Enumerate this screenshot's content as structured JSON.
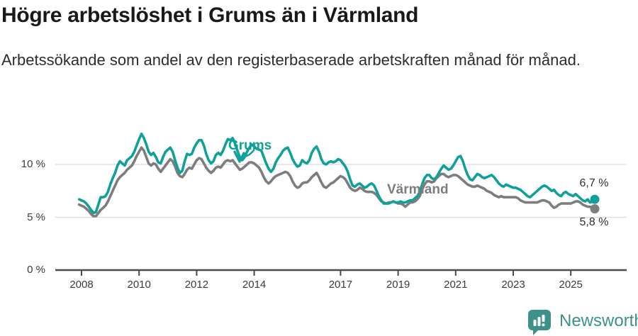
{
  "chart_data": {
    "type": "line",
    "title": "Högre arbetslöshet i Grums än i Värmland",
    "subtitle": "Arbetssökande som andel av den registerbaserade arbetskraften månad för månad.",
    "unit": "%",
    "grid": "horizontal-only",
    "legend": "inline-labels",
    "x_axis": {
      "ticks": [
        {
          "value": 2008,
          "label": "2008"
        },
        {
          "value": 2010,
          "label": "2010"
        },
        {
          "value": 2012,
          "label": "2012"
        },
        {
          "value": 2014,
          "label": "2014"
        },
        {
          "value": 2017,
          "label": "2017"
        },
        {
          "value": 2019,
          "label": "2019"
        },
        {
          "value": 2021,
          "label": "2021"
        },
        {
          "value": 2023,
          "label": "2023"
        },
        {
          "value": 2025,
          "label": "2025"
        }
      ]
    },
    "y_axis": {
      "min": 0,
      "max": 13.6,
      "ticks": [
        {
          "value": 0,
          "label": "0 %"
        },
        {
          "value": 5,
          "label": "5 %"
        },
        {
          "value": 10,
          "label": "10 %"
        }
      ]
    },
    "x_start_year": 2007.9167,
    "x_step_years": 0.0833333,
    "series": [
      {
        "name": "Grums",
        "color": "#10a09a",
        "end_value": 6.7,
        "end_label": "6,7 %",
        "values": [
          6.7,
          6.6,
          6.5,
          6.3,
          6.0,
          5.7,
          5.4,
          5.5,
          6.2,
          6.9,
          6.9,
          7.0,
          7.4,
          8.1,
          8.7,
          9.2,
          9.9,
          10.3,
          10.1,
          9.9,
          10.4,
          10.6,
          10.8,
          11.2,
          11.8,
          12.4,
          12.9,
          12.5,
          11.9,
          11.2,
          10.9,
          11.1,
          10.7,
          10.2,
          10.1,
          10.7,
          11.2,
          11.4,
          11.6,
          11.2,
          10.4,
          9.7,
          9.2,
          9.4,
          10.3,
          11.0,
          10.9,
          11.0,
          11.6,
          12.0,
          12.3,
          12.3,
          11.8,
          11.0,
          10.4,
          10.1,
          10.3,
          10.9,
          11.1,
          10.9,
          11.3,
          11.9,
          12.4,
          12.3,
          12.5,
          12.0,
          11.3,
          10.7,
          10.4,
          10.7,
          11.2,
          11.6,
          11.9,
          11.7,
          11.5,
          11.4,
          11.3,
          10.7,
          10.1,
          9.6,
          9.3,
          9.6,
          10.2,
          10.6,
          10.9,
          11.3,
          11.5,
          11.6,
          11.1,
          10.5,
          10.1,
          9.8,
          9.9,
          10.4,
          10.2,
          10.1,
          10.4,
          11.1,
          11.5,
          11.7,
          11.2,
          10.5,
          10.1,
          10.0,
          10.2,
          10.3,
          10.2,
          10.3,
          10.5,
          10.4,
          10.1,
          9.8,
          9.3,
          8.6,
          8.0,
          7.9,
          8.1,
          8.2,
          8.0,
          7.8,
          7.9,
          8.1,
          8.2,
          8.0,
          7.5,
          7.0,
          6.6,
          6.3,
          6.3,
          6.3,
          6.4,
          6.5,
          6.4,
          6.4,
          6.5,
          6.4,
          6.4,
          6.5,
          6.6,
          6.6,
          6.8,
          7.0,
          7.4,
          8.1,
          8.7,
          9.0,
          9.0,
          8.7,
          8.6,
          8.8,
          9.2,
          9.6,
          9.9,
          9.7,
          9.5,
          9.6,
          9.9,
          10.3,
          10.7,
          10.8,
          10.3,
          9.6,
          9.0,
          8.6,
          8.5,
          8.8,
          9.1,
          9.0,
          8.8,
          8.7,
          8.8,
          8.9,
          9.0,
          8.8,
          8.5,
          8.2,
          8.0,
          7.9,
          8.1,
          8.0,
          7.9,
          7.8,
          7.8,
          7.7,
          7.6,
          7.4,
          7.2,
          7.0,
          6.9,
          7.1,
          7.3,
          7.5,
          7.7,
          7.9,
          8.0,
          7.9,
          7.7,
          7.5,
          7.6,
          7.3,
          7.1,
          7.0,
          7.3,
          7.4,
          7.2,
          7.1,
          7.0,
          7.2,
          7.0,
          6.8,
          6.6,
          6.5,
          6.7,
          6.4,
          6.5,
          6.7
        ]
      },
      {
        "name": "Värmland",
        "color": "#7d7d7d",
        "end_value": 5.8,
        "end_label": "5,8 %",
        "values": [
          6.2,
          6.1,
          6.0,
          5.8,
          5.6,
          5.3,
          5.1,
          5.1,
          5.4,
          5.7,
          5.9,
          6.1,
          6.5,
          7.0,
          7.5,
          8.0,
          8.5,
          8.8,
          9.0,
          9.2,
          9.5,
          9.7,
          9.9,
          10.3,
          10.8,
          11.2,
          11.6,
          11.3,
          10.7,
          10.1,
          9.9,
          10.1,
          10.0,
          9.6,
          9.3,
          9.6,
          9.9,
          10.2,
          10.5,
          10.3,
          9.8,
          9.2,
          8.9,
          8.8,
          9.1,
          9.5,
          9.7,
          9.6,
          10.0,
          10.4,
          10.6,
          10.5,
          10.1,
          9.7,
          9.4,
          9.2,
          9.4,
          9.7,
          9.8,
          9.7,
          10.0,
          10.3,
          10.4,
          10.3,
          10.4,
          10.1,
          9.8,
          9.5,
          9.6,
          9.8,
          10.0,
          10.2,
          10.2,
          10.1,
          9.9,
          9.7,
          9.3,
          8.8,
          8.4,
          8.2,
          8.4,
          8.7,
          8.9,
          9.0,
          9.1,
          9.2,
          9.3,
          9.2,
          8.9,
          8.4,
          8.0,
          7.8,
          7.9,
          8.2,
          8.3,
          8.3,
          8.5,
          8.8,
          9.0,
          9.2,
          8.8,
          8.3,
          7.9,
          7.8,
          8.0,
          8.2,
          8.3,
          8.5,
          8.7,
          8.9,
          8.8,
          8.6,
          8.2,
          7.8,
          7.6,
          7.5,
          7.6,
          7.8,
          7.7,
          7.5,
          7.4,
          7.4,
          7.4,
          7.3,
          7.1,
          6.8,
          6.5,
          6.4,
          6.3,
          6.4,
          6.4,
          6.5,
          6.4,
          6.3,
          6.3,
          6.2,
          6.0,
          6.2,
          6.4,
          6.4,
          6.5,
          6.7,
          7.0,
          7.6,
          8.1,
          8.4,
          8.4,
          8.3,
          8.4,
          8.7,
          8.9,
          9.1,
          9.1,
          8.9,
          8.8,
          8.9,
          9.0,
          9.0,
          8.9,
          8.7,
          8.5,
          8.3,
          8.1,
          8.0,
          7.9,
          7.9,
          8.0,
          7.9,
          7.8,
          7.7,
          7.5,
          7.4,
          7.3,
          7.1,
          7.0,
          6.9,
          7.0,
          6.9,
          6.9,
          6.9,
          6.9,
          6.9,
          6.9,
          6.8,
          6.6,
          6.5,
          6.4,
          6.4,
          6.4,
          6.4,
          6.4,
          6.4,
          6.5,
          6.6,
          6.6,
          6.5,
          6.4,
          6.1,
          5.9,
          6.0,
          6.2,
          6.3,
          6.3,
          6.3,
          6.3,
          6.3,
          6.4,
          6.5,
          6.5,
          6.4,
          6.2,
          6.1,
          6.0,
          6.0,
          5.9,
          5.8
        ]
      }
    ],
    "colors": {
      "axis": "#4a4a4a",
      "gridline": "#dadada",
      "tick_text": "#3a3a3a"
    }
  },
  "footer": {
    "brand": "Newsworthy",
    "brand_color": "#3e918b"
  }
}
